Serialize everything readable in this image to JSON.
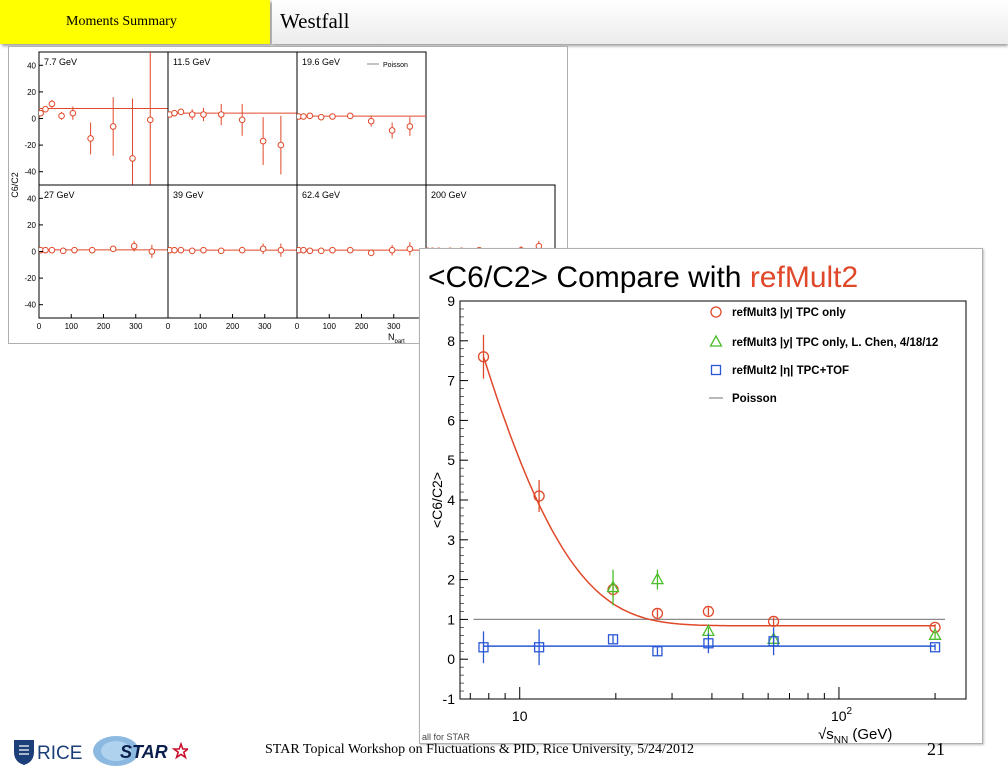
{
  "header": {
    "section_label": "Moments Summary",
    "title": "Westfall"
  },
  "footer": {
    "text": "STAR Topical Workshop on Fluctuations & PID, Rice University, 5/24/2012",
    "page_number": "21",
    "logos": [
      "RICE",
      "STAR"
    ]
  },
  "colors": {
    "red": "#e0482a",
    "green": "#4bbd2a",
    "blue": "#2a57d6",
    "grey": "#8a8a8a",
    "yellow": "#ffff00",
    "rice_blue": "#1c3f7a",
    "star_red": "#c8102e"
  },
  "chart_data": [
    {
      "type": "scatter",
      "title": "",
      "ylabel": "C6/C2",
      "xlabel": "N",
      "xlabel_sub": "part",
      "legend": [
        "Poisson"
      ],
      "legend_position": "top-right",
      "xlim": [
        0,
        400
      ],
      "ylim": [
        -50,
        50
      ],
      "x_ticks": [
        "0",
        "100",
        "200",
        "300"
      ],
      "y_ticks": [
        "40",
        "20",
        "0",
        "-20",
        "-40"
      ],
      "panels": [
        {
          "label": "7.7 GeV",
          "poisson": 7.5,
          "points": [
            {
              "x": 5,
              "y": 4,
              "err": 2
            },
            {
              "x": 20,
              "y": 7,
              "err": 2
            },
            {
              "x": 40,
              "y": 11,
              "err": 3
            },
            {
              "x": 70,
              "y": 2,
              "err": 3
            },
            {
              "x": 105,
              "y": 4,
              "err": 5
            },
            {
              "x": 160,
              "y": -15,
              "err": 12
            },
            {
              "x": 230,
              "y": -6,
              "err": 22
            },
            {
              "x": 290,
              "y": -30,
              "err": 45
            },
            {
              "x": 345,
              "y": -1,
              "err": 55
            }
          ]
        },
        {
          "label": "11.5 GeV",
          "poisson": 4,
          "points": [
            {
              "x": 5,
              "y": 3,
              "err": 1.5
            },
            {
              "x": 20,
              "y": 4,
              "err": 2
            },
            {
              "x": 40,
              "y": 5,
              "err": 2
            },
            {
              "x": 75,
              "y": 3,
              "err": 4
            },
            {
              "x": 110,
              "y": 3,
              "err": 5
            },
            {
              "x": 165,
              "y": 3,
              "err": 8
            },
            {
              "x": 230,
              "y": -1,
              "err": 12
            },
            {
              "x": 295,
              "y": -17,
              "err": 18
            },
            {
              "x": 350,
              "y": -20,
              "err": 22
            }
          ]
        },
        {
          "label": "19.6 GeV",
          "poisson": 1.8,
          "points": [
            {
              "x": 5,
              "y": 1.5,
              "err": 1
            },
            {
              "x": 20,
              "y": 1.5,
              "err": 1
            },
            {
              "x": 40,
              "y": 2,
              "err": 1
            },
            {
              "x": 75,
              "y": 1,
              "err": 1.5
            },
            {
              "x": 110,
              "y": 1.5,
              "err": 2
            },
            {
              "x": 165,
              "y": 2,
              "err": 2.5
            },
            {
              "x": 230,
              "y": -2,
              "err": 4
            },
            {
              "x": 295,
              "y": -9,
              "err": 6
            },
            {
              "x": 350,
              "y": -6,
              "err": 7
            }
          ]
        },
        {
          "label": "27 GeV",
          "poisson": 1.2,
          "points": [
            {
              "x": 5,
              "y": 1,
              "err": 0.8
            },
            {
              "x": 20,
              "y": 1,
              "err": 0.8
            },
            {
              "x": 40,
              "y": 1,
              "err": 1
            },
            {
              "x": 75,
              "y": 0.5,
              "err": 1
            },
            {
              "x": 110,
              "y": 1,
              "err": 1.5
            },
            {
              "x": 165,
              "y": 1,
              "err": 2
            },
            {
              "x": 230,
              "y": 2,
              "err": 2.5
            },
            {
              "x": 295,
              "y": 4,
              "err": 4
            },
            {
              "x": 350,
              "y": 0,
              "err": 5
            }
          ]
        },
        {
          "label": "39 GeV",
          "poisson": 1,
          "points": [
            {
              "x": 5,
              "y": 1,
              "err": 0.8
            },
            {
              "x": 20,
              "y": 1,
              "err": 0.8
            },
            {
              "x": 40,
              "y": 1,
              "err": 1
            },
            {
              "x": 75,
              "y": 0.5,
              "err": 1
            },
            {
              "x": 110,
              "y": 1,
              "err": 1.5
            },
            {
              "x": 165,
              "y": 0.5,
              "err": 2
            },
            {
              "x": 230,
              "y": 1,
              "err": 2.5
            },
            {
              "x": 295,
              "y": 2,
              "err": 4
            },
            {
              "x": 350,
              "y": 1,
              "err": 5
            }
          ]
        },
        {
          "label": "62.4 GeV",
          "poisson": 1,
          "points": [
            {
              "x": 5,
              "y": 1,
              "err": 0.8
            },
            {
              "x": 20,
              "y": 1,
              "err": 0.8
            },
            {
              "x": 40,
              "y": 0.5,
              "err": 1
            },
            {
              "x": 75,
              "y": 0.5,
              "err": 1
            },
            {
              "x": 110,
              "y": 1,
              "err": 1.5
            },
            {
              "x": 165,
              "y": 1,
              "err": 2
            },
            {
              "x": 230,
              "y": -1,
              "err": 2.5
            },
            {
              "x": 295,
              "y": 1,
              "err": 4
            },
            {
              "x": 350,
              "y": 2,
              "err": 5
            }
          ]
        },
        {
          "label": "200 GeV",
          "poisson": 1,
          "points": [
            {
              "x": 5,
              "y": 0.5,
              "err": 0.8
            },
            {
              "x": 20,
              "y": 0.5,
              "err": 0.8
            },
            {
              "x": 40,
              "y": 0.5,
              "err": 0.8
            },
            {
              "x": 75,
              "y": 0.5,
              "err": 1
            },
            {
              "x": 110,
              "y": 0.5,
              "err": 1
            },
            {
              "x": 165,
              "y": 1,
              "err": 1.5
            },
            {
              "x": 230,
              "y": 0,
              "err": 2
            },
            {
              "x": 295,
              "y": 1,
              "err": 3
            },
            {
              "x": 350,
              "y": 4,
              "err": 4
            }
          ]
        }
      ]
    },
    {
      "type": "scatter",
      "title": "<C6/C2> Compare with ",
      "title_highlight": "refMult2",
      "ylabel": "<C6/C2>",
      "xlabel": "√s",
      "xlabel_sub": "NN",
      "xlabel_unit": " (GeV)",
      "x_scale": "log",
      "xlim": [
        6.5,
        250
      ],
      "ylim": [
        -1,
        9
      ],
      "y_ticks": [
        "-1",
        "0",
        "1",
        "2",
        "3",
        "4",
        "5",
        "6",
        "7",
        "8",
        "9"
      ],
      "x_tick_major_label": "10",
      "x_tick_major2_base": "10",
      "x_tick_major2_exp": "2",
      "legend_position": "top-right",
      "footnote": "all for STAR",
      "series": [
        {
          "name": "refMult3 |y| TPC only",
          "marker": "circle",
          "points": [
            {
              "x": 7.7,
              "y": 7.6,
              "err": 0.55
            },
            {
              "x": 11.5,
              "y": 4.1,
              "err": 0.4
            },
            {
              "x": 19.6,
              "y": 1.75,
              "err": 0.2
            },
            {
              "x": 27,
              "y": 1.15,
              "err": 0.1
            },
            {
              "x": 39,
              "y": 1.2,
              "err": 0.1
            },
            {
              "x": 62.4,
              "y": 0.95,
              "err": 0.1
            },
            {
              "x": 200,
              "y": 0.8,
              "err": 0.08
            }
          ]
        },
        {
          "name": "refMult3 |y| TPC only, L. Chen, 4/18/12",
          "marker": "triangle",
          "points": [
            {
              "x": 19.6,
              "y": 1.8,
              "err": 0.45
            },
            {
              "x": 27,
              "y": 2.0,
              "err": 0.25
            },
            {
              "x": 39,
              "y": 0.7,
              "err": 0.1
            },
            {
              "x": 62.4,
              "y": 0.5,
              "err": 0.15
            },
            {
              "x": 200,
              "y": 0.6,
              "err": 0.08
            }
          ]
        },
        {
          "name": "refMult2 |η| TPC+TOF",
          "marker": "square",
          "points": [
            {
              "x": 7.7,
              "y": 0.3,
              "err": 0.4
            },
            {
              "x": 11.5,
              "y": 0.3,
              "err": 0.45
            },
            {
              "x": 19.6,
              "y": 0.5,
              "err": 0.1
            },
            {
              "x": 27,
              "y": 0.2,
              "err": 0.1
            },
            {
              "x": 39,
              "y": 0.4,
              "err": 0.25
            },
            {
              "x": 62.4,
              "y": 0.45,
              "err": 0.35
            },
            {
              "x": 200,
              "y": 0.3,
              "err": 0.08
            }
          ]
        },
        {
          "name": "Poisson",
          "marker": "line",
          "y": 1.0,
          "x_range": [
            7.7,
            200
          ]
        }
      ],
      "fits": [
        {
          "series": "refMult3 |y| TPC only",
          "form": "exponential",
          "a": 11.7,
          "b": 0.21,
          "c": 0.84
        },
        {
          "series": "refMult2 |η| TPC+TOF",
          "form": "constant",
          "c": 0.33
        }
      ]
    }
  ]
}
